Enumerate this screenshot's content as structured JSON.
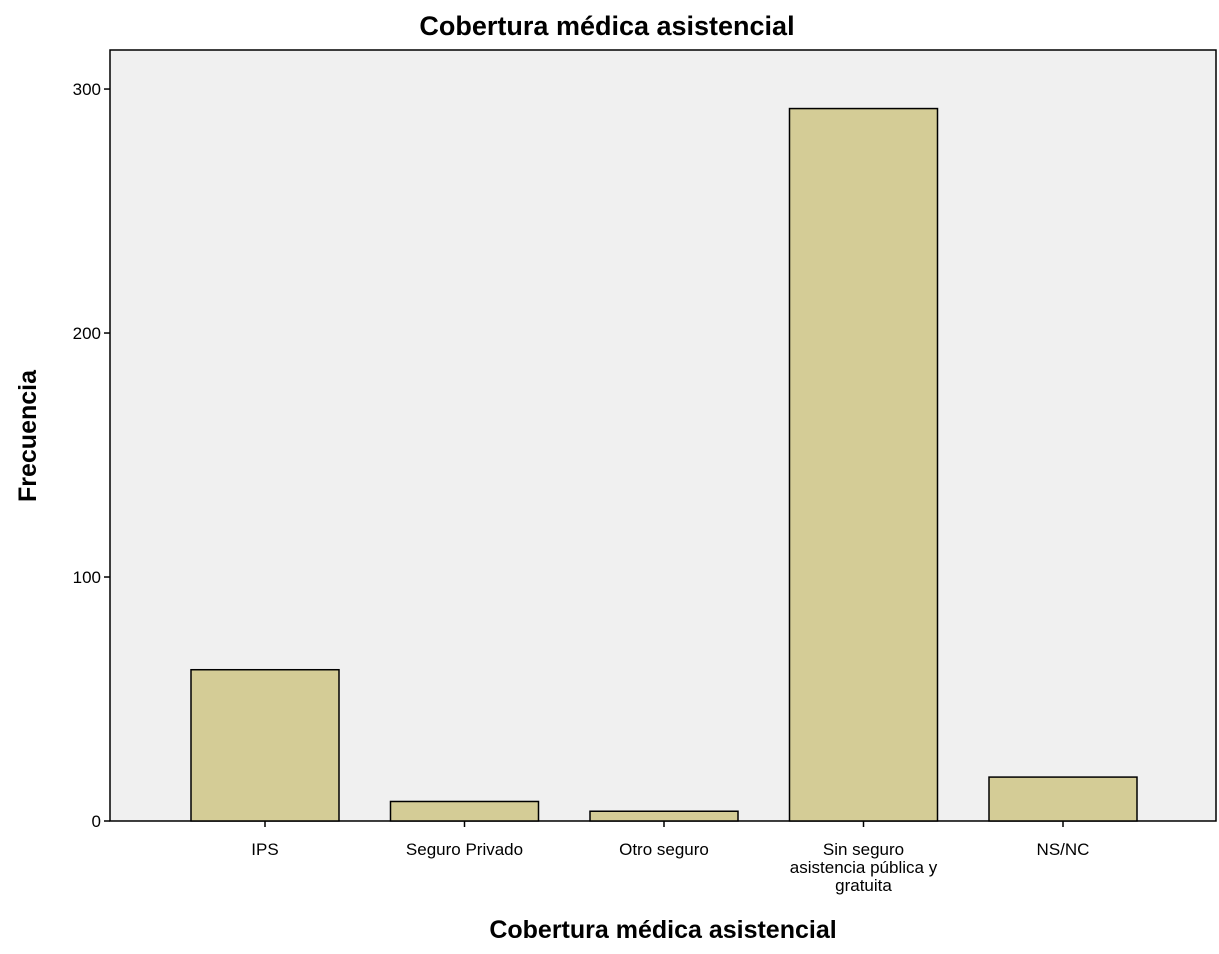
{
  "chart_data": {
    "type": "bar",
    "title": "Cobertura médica asistencial",
    "xlabel": "Cobertura médica asistencial",
    "ylabel": "Frecuencia",
    "categories": [
      [
        "IPS"
      ],
      [
        "Seguro Privado"
      ],
      [
        "Otro seguro"
      ],
      [
        "Sin seguro",
        "asistencia pública y",
        "gratuita"
      ],
      [
        "NS/NC"
      ]
    ],
    "values": [
      62,
      8,
      4,
      292,
      18
    ],
    "ylim": [
      0,
      316
    ],
    "yticks": [
      "0",
      "100",
      "200",
      "300"
    ],
    "grid": false,
    "colors": {
      "bar_fill": "#d4cc96",
      "bar_stroke": "#000000",
      "plot_background": "#f0f0f0"
    }
  }
}
